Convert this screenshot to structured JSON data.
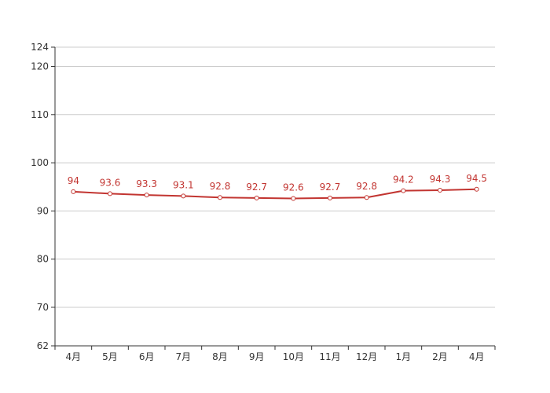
{
  "chart_data": {
    "type": "line",
    "title": "",
    "xlabel": "",
    "ylabel": "",
    "categories": [
      "4月",
      "5月",
      "6月",
      "7月",
      "8月",
      "9月",
      "10月",
      "11月",
      "12月",
      "1月",
      "2月",
      "4月"
    ],
    "series": [
      {
        "values": [
          94,
          93.6,
          93.3,
          93.1,
          92.8,
          92.7,
          92.6,
          92.7,
          92.8,
          94.2,
          94.3,
          94.5
        ],
        "color": "#c23531",
        "data_labels": [
          "94",
          "93.6",
          "93.3",
          "93.1",
          "92.8",
          "92.7",
          "92.6",
          "92.7",
          "92.8",
          "94.2",
          "94.3",
          "94.5"
        ]
      }
    ],
    "ylim": [
      62,
      124
    ],
    "yticks": [
      62,
      70,
      80,
      90,
      100,
      110,
      120,
      124
    ],
    "ytick_labels": [
      "62",
      "70",
      "80",
      "90",
      "100",
      "110",
      "120",
      "124"
    ],
    "grid": true,
    "legend": "none",
    "colors": {
      "line": "#c23531",
      "grid": "#cccccc",
      "axis": "#333333",
      "label": "#c23531"
    }
  }
}
